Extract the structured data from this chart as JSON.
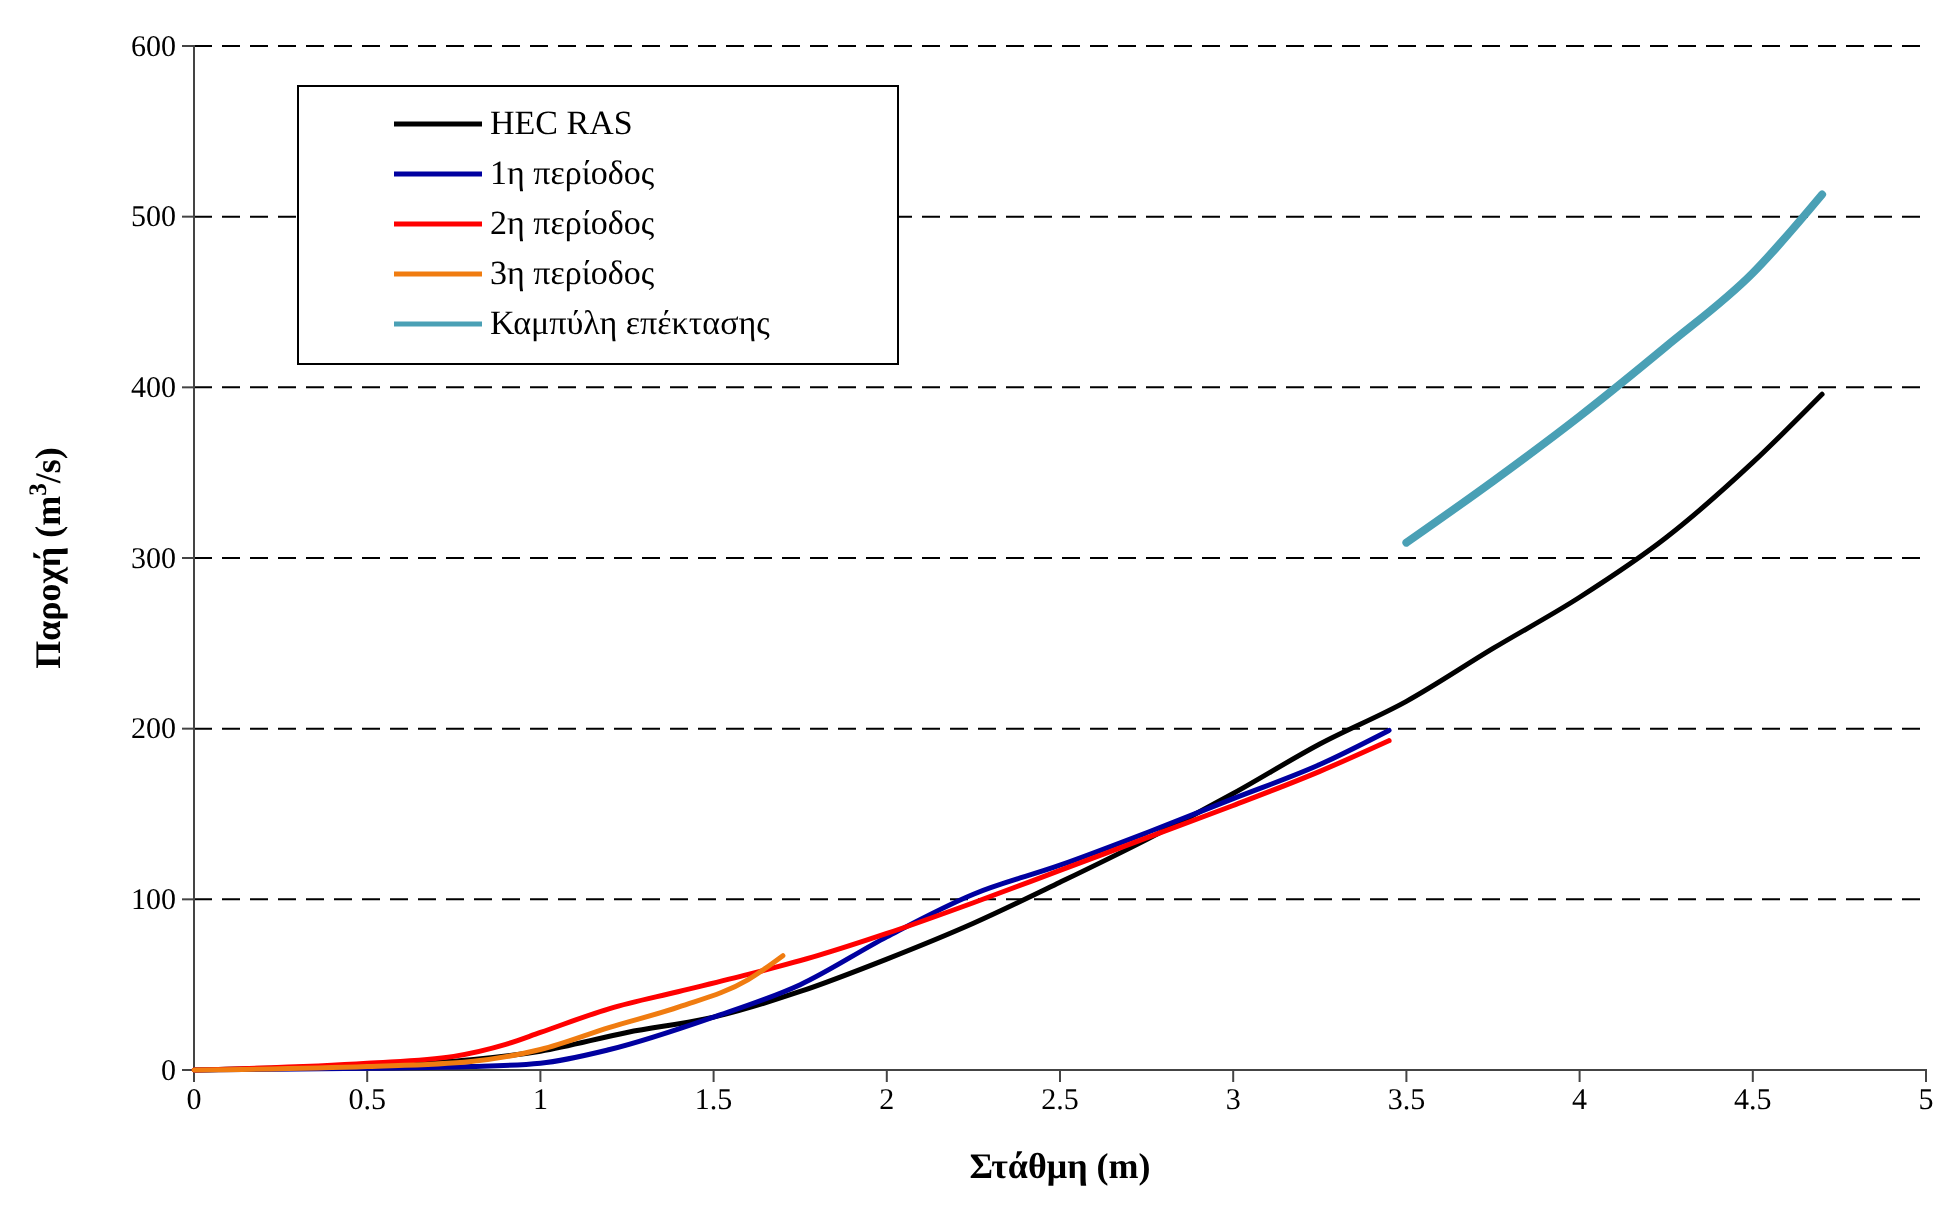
{
  "chart_data": {
    "type": "line",
    "xlabel": "Στάθμη (m)",
    "ylabel": "Παροχή (m$^{3}$/s)",
    "xlim": [
      0,
      5
    ],
    "xticks": [
      0,
      0.5,
      1,
      1.5,
      2,
      2.5,
      3,
      3.5,
      4,
      4.5,
      5
    ],
    "ylim": [
      0,
      600
    ],
    "yticks": [
      0,
      100,
      200,
      300,
      400,
      500,
      600
    ],
    "grid": "y",
    "legend": "top left",
    "marker": "none",
    "series": [
      {
        "name": "HEC RAS",
        "color": "#000000",
        "x": [
          0,
          0.5,
          0.8,
          1,
          1.25,
          1.5,
          1.75,
          2,
          2.25,
          2.5,
          2.75,
          3,
          3.25,
          3.5,
          3.75,
          4,
          4.25,
          4.5,
          4.7
        ],
        "values": [
          0,
          3,
          6,
          11,
          22,
          31,
          46,
          65,
          86,
          110,
          135,
          162,
          191,
          216,
          247,
          277,
          312,
          356,
          396
        ]
      },
      {
        "name": "1η περίοδος",
        "color": "#0000a0",
        "x": [
          0,
          0.5,
          0.8,
          1,
          1.2,
          1.5,
          1.75,
          2,
          2.25,
          2.5,
          2.75,
          3,
          3.25,
          3.45
        ],
        "values": [
          0,
          1,
          2,
          4,
          12,
          31,
          50,
          78,
          103,
          120,
          139,
          159,
          179,
          199
        ]
      },
      {
        "name": "2η περίοδος",
        "color": "#ff0000",
        "x": [
          0,
          0.5,
          0.75,
          0.9,
          1,
          1.2,
          1.4,
          1.6,
          1.8,
          2,
          2.25,
          2.5,
          2.75,
          3,
          3.25,
          3.45
        ],
        "values": [
          0,
          4,
          8,
          15,
          22,
          36,
          46,
          56,
          67,
          80,
          98,
          117,
          136,
          155,
          175,
          193
        ]
      },
      {
        "name": "3η περίοδος",
        "color": "#f07c10",
        "x": [
          0,
          0.5,
          0.8,
          1,
          1.2,
          1.4,
          1.6,
          1.7
        ],
        "values": [
          0,
          2,
          5,
          12,
          25,
          37,
          53,
          67
        ]
      },
      {
        "name": "Καμπύλη επέκτασης",
        "color": "#4aa0b5",
        "x": [
          3.5,
          3.75,
          4,
          4.25,
          4.5,
          4.7
        ],
        "values": [
          309,
          345,
          383,
          424,
          467,
          513
        ]
      }
    ]
  }
}
